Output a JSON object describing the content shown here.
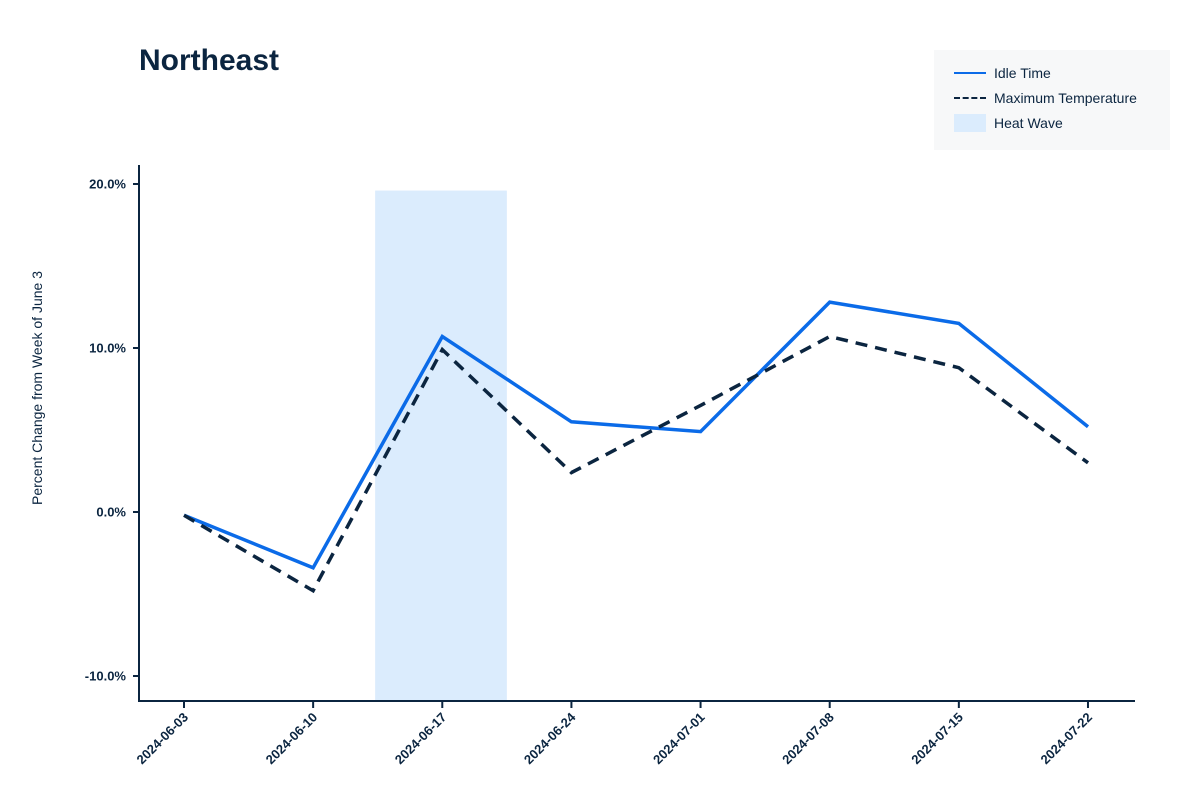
{
  "title": "Northeast",
  "legend": {
    "items": [
      {
        "label": "Idle Time",
        "type": "line",
        "color": "#0b6be8"
      },
      {
        "label": "Maximum Temperature",
        "type": "dashed",
        "color": "#0b2540"
      },
      {
        "label": "Heat Wave",
        "type": "band",
        "color": "#dbecfd"
      }
    ]
  },
  "axes": {
    "ylabel": "Percent Change from Week of June 3",
    "yticks": [
      "20.0%",
      "10.0%",
      "0.0%",
      "-10.0%"
    ],
    "xticks": [
      "2024-06-03",
      "2024-06-10",
      "2024-06-17",
      "2024-06-24",
      "2024-07-01",
      "2024-07-08",
      "2024-07-15",
      "2024-07-22"
    ]
  },
  "chart_data": {
    "type": "line",
    "title": "Northeast",
    "xlabel": "",
    "ylabel": "Percent Change from Week of June 3",
    "categories": [
      "2024-06-03",
      "2024-06-10",
      "2024-06-17",
      "2024-06-24",
      "2024-07-01",
      "2024-07-08",
      "2024-07-15",
      "2024-07-22"
    ],
    "series": [
      {
        "name": "Idle Time",
        "style": "solid",
        "color": "#0b6be8",
        "values": [
          -0.2,
          -3.4,
          10.7,
          5.5,
          4.9,
          12.8,
          11.5,
          5.2
        ]
      },
      {
        "name": "Maximum Temperature",
        "style": "dashed",
        "color": "#0b2540",
        "values": [
          -0.2,
          -4.8,
          9.9,
          2.4,
          6.5,
          10.7,
          8.8,
          3.0
        ]
      }
    ],
    "shaded_regions": [
      {
        "name": "Heat Wave",
        "x_start_index": 1.48,
        "x_end_index": 2.5,
        "y_top": 19.6,
        "color": "#dbecfd"
      }
    ],
    "ylim": [
      -11.5,
      21.2
    ],
    "yticks": [
      -10,
      0,
      10,
      20
    ],
    "ytick_format": "percent_1dp",
    "grid": false,
    "legend_position": "upper right"
  }
}
